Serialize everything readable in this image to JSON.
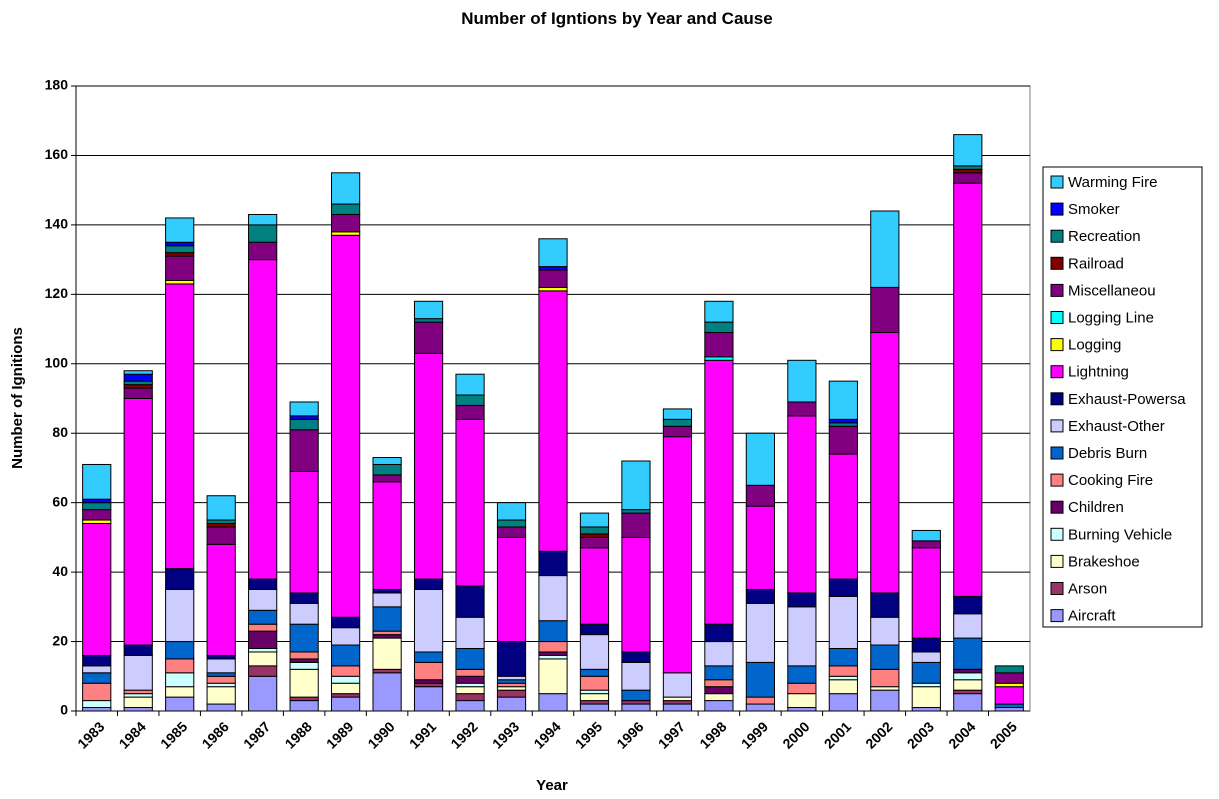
{
  "chart_data": {
    "type": "stacked_bar",
    "title": "Number of Igntions by Year and Cause",
    "x_label": "Year",
    "y_label": "Number of Ignitions",
    "categories": [
      "1983",
      "1984",
      "1985",
      "1986",
      "1987",
      "1988",
      "1989",
      "1990",
      "1991",
      "1992",
      "1993",
      "1994",
      "1995",
      "1996",
      "1997",
      "1998",
      "1999",
      "2000",
      "2001",
      "2002",
      "2003",
      "2004",
      "2005"
    ],
    "ylim": [
      0,
      180
    ],
    "yticks": [
      0,
      20,
      40,
      60,
      80,
      100,
      120,
      140,
      160,
      180
    ],
    "grid": true,
    "legend": "right",
    "series": [
      {
        "name": "Aircraft",
        "color": "#9999ff",
        "values": [
          1,
          1,
          4,
          2,
          10,
          3,
          4,
          11,
          7,
          3,
          4,
          5,
          2,
          2,
          2,
          3,
          2,
          1,
          5,
          6,
          1,
          5,
          1
        ]
      },
      {
        "name": "Arson",
        "color": "#993366",
        "values": [
          0,
          0,
          0,
          0,
          3,
          1,
          1,
          1,
          1,
          2,
          2,
          0,
          1,
          1,
          1,
          0,
          0,
          0,
          0,
          0,
          0,
          1,
          0
        ]
      },
      {
        "name": "Brakeshoe",
        "color": "#ffffcc",
        "values": [
          0,
          3,
          3,
          5,
          4,
          8,
          3,
          9,
          0,
          2,
          1,
          10,
          2,
          0,
          1,
          2,
          0,
          4,
          4,
          1,
          6,
          3,
          0
        ]
      },
      {
        "name": "Burning Vehicle",
        "color": "#ccffff",
        "values": [
          2,
          1,
          4,
          1,
          1,
          2,
          2,
          0,
          0,
          1,
          0,
          1,
          1,
          0,
          0,
          0,
          0,
          0,
          1,
          0,
          1,
          2,
          0
        ]
      },
      {
        "name": "Children",
        "color": "#660066",
        "values": [
          0,
          0,
          0,
          0,
          5,
          1,
          0,
          1,
          1,
          2,
          0,
          1,
          0,
          0,
          0,
          2,
          0,
          0,
          0,
          0,
          0,
          1,
          0
        ]
      },
      {
        "name": "Cooking Fire",
        "color": "#ff8080",
        "values": [
          5,
          1,
          4,
          2,
          2,
          2,
          3,
          1,
          5,
          2,
          1,
          3,
          4,
          0,
          0,
          2,
          2,
          3,
          3,
          5,
          0,
          0,
          0
        ]
      },
      {
        "name": "Debris Burn",
        "color": "#0066cc",
        "values": [
          3,
          0,
          5,
          1,
          4,
          8,
          6,
          7,
          3,
          6,
          1,
          6,
          2,
          3,
          0,
          4,
          10,
          5,
          5,
          7,
          6,
          9,
          1
        ]
      },
      {
        "name": "Exhaust-Other",
        "color": "#ccccff",
        "values": [
          2,
          10,
          15,
          4,
          6,
          6,
          5,
          4,
          18,
          9,
          1,
          13,
          10,
          8,
          7,
          7,
          17,
          17,
          15,
          8,
          3,
          7,
          0
        ]
      },
      {
        "name": "Exhaust-Powersa",
        "color": "#000080",
        "values": [
          3,
          3,
          6,
          1,
          3,
          3,
          3,
          1,
          3,
          9,
          10,
          7,
          3,
          3,
          0,
          5,
          4,
          4,
          5,
          7,
          4,
          5,
          0
        ]
      },
      {
        "name": "Lightning",
        "color": "#ff00ff",
        "values": [
          38,
          71,
          82,
          32,
          92,
          35,
          110,
          31,
          65,
          48,
          30,
          75,
          22,
          33,
          68,
          76,
          24,
          51,
          36,
          75,
          26,
          119,
          5
        ]
      },
      {
        "name": "Logging",
        "color": "#ffff00",
        "values": [
          1,
          0,
          1,
          0,
          0,
          0,
          1,
          0,
          0,
          0,
          0,
          1,
          0,
          0,
          0,
          0,
          0,
          0,
          0,
          0,
          0,
          0,
          1
        ]
      },
      {
        "name": "Logging Line",
        "color": "#00ffff",
        "values": [
          0,
          0,
          0,
          0,
          0,
          0,
          0,
          0,
          0,
          0,
          0,
          0,
          0,
          0,
          0,
          1,
          0,
          0,
          0,
          0,
          0,
          0,
          0
        ]
      },
      {
        "name": "Miscellaneou",
        "color": "#800080",
        "values": [
          3,
          3,
          7,
          5,
          5,
          12,
          5,
          2,
          9,
          4,
          3,
          5,
          3,
          7,
          3,
          7,
          6,
          4,
          8,
          13,
          2,
          3,
          3
        ]
      },
      {
        "name": "Railroad",
        "color": "#800000",
        "values": [
          0,
          1,
          1,
          1,
          0,
          0,
          0,
          0,
          0,
          0,
          0,
          0,
          1,
          0,
          0,
          0,
          0,
          0,
          0,
          0,
          0,
          1,
          0
        ]
      },
      {
        "name": "Recreation",
        "color": "#008080",
        "values": [
          2,
          1,
          2,
          1,
          5,
          3,
          3,
          3,
          1,
          3,
          2,
          0,
          2,
          1,
          2,
          3,
          0,
          0,
          1,
          0,
          0,
          1,
          2
        ]
      },
      {
        "name": "Smoker",
        "color": "#0000ff",
        "values": [
          1,
          2,
          1,
          0,
          0,
          1,
          0,
          0,
          0,
          0,
          0,
          1,
          0,
          0,
          0,
          0,
          0,
          0,
          1,
          0,
          0,
          0,
          0
        ]
      },
      {
        "name": "Warming Fire",
        "color": "#33ccff",
        "values": [
          10,
          1,
          7,
          7,
          3,
          4,
          9,
          2,
          5,
          6,
          5,
          8,
          4,
          14,
          3,
          6,
          15,
          12,
          11,
          22,
          3,
          9,
          0
        ]
      }
    ]
  }
}
